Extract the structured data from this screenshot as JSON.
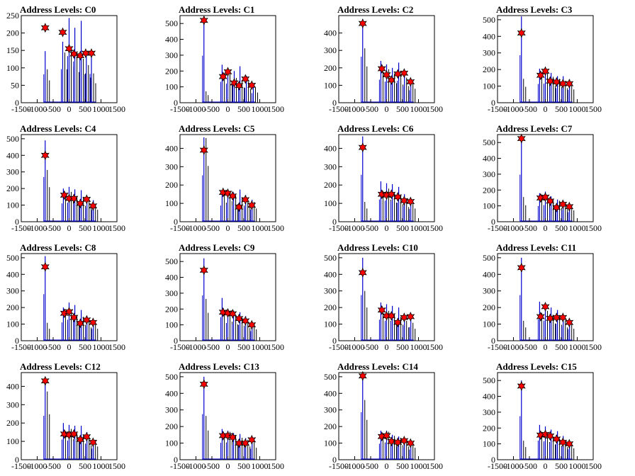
{
  "chart_data": [
    {
      "type": "line",
      "title": "Address Levels: C0",
      "xlim": [
        -1500,
        1500
      ],
      "ylim": [
        0,
        250
      ],
      "yticks": [
        0,
        50,
        100,
        150,
        200,
        250
      ],
      "xticks": [
        -1500,
        -1000,
        -500,
        0,
        500,
        1000,
        1500
      ],
      "histogram": {
        "x": [
          -750,
          -200,
          0,
          180,
          380,
          540,
          700
        ],
        "heights": [
          148,
          175,
          243,
          215,
          235,
          148,
          150
        ],
        "secondary": [
          80,
          120,
          130,
          110,
          105,
          90,
          70
        ]
      },
      "peaks": {
        "x": [
          -750,
          -200,
          0,
          150,
          350,
          520,
          700
        ],
        "y": [
          215,
          202,
          155,
          140,
          135,
          142,
          142
        ]
      },
      "colors": {
        "histogram": "#0000cc",
        "marker": "#ff0000",
        "secondary": "#000000"
      }
    },
    {
      "type": "line",
      "title": "Address Levels: C1",
      "xlim": [
        -1500,
        1500
      ],
      "ylim": [
        0,
        550
      ],
      "yticks": [
        0,
        100,
        200,
        300,
        400,
        500
      ],
      "xticks": [
        -1500,
        -1000,
        -500,
        0,
        500,
        1000,
        1500
      ],
      "histogram": {
        "x": [
          -750,
          -180,
          0,
          200,
          380,
          580,
          800
        ],
        "heights": [
          540,
          240,
          220,
          200,
          230,
          170,
          110
        ],
        "secondary": [
          60,
          140,
          150,
          130,
          120,
          110,
          80
        ]
      },
      "peaks": {
        "x": [
          -750,
          -150,
          0,
          200,
          350,
          550,
          750
        ],
        "y": [
          520,
          165,
          195,
          125,
          108,
          150,
          110
        ]
      },
      "colors": {
        "histogram": "#0000cc",
        "marker": "#ff0000",
        "secondary": "#000000"
      }
    },
    {
      "type": "line",
      "title": "Address Levels: C2",
      "xlim": [
        -1500,
        1500
      ],
      "ylim": [
        0,
        500
      ],
      "yticks": [
        0,
        100,
        200,
        300,
        400
      ],
      "xticks": [
        -1500,
        -1000,
        -500,
        0,
        500,
        1000,
        1500
      ],
      "histogram": {
        "x": [
          -750,
          -180,
          0,
          180,
          380,
          560,
          760
        ],
        "heights": [
          480,
          240,
          220,
          200,
          230,
          170,
          130
        ],
        "secondary": [
          260,
          150,
          160,
          140,
          130,
          120,
          100
        ]
      },
      "peaks": {
        "x": [
          -750,
          -150,
          0,
          150,
          350,
          550,
          750
        ],
        "y": [
          455,
          195,
          160,
          130,
          165,
          170,
          120
        ]
      },
      "colors": {
        "histogram": "#0000cc",
        "marker": "#ff0000",
        "secondary": "#000000"
      }
    },
    {
      "type": "line",
      "title": "Address Levels: C3",
      "xlim": [
        -1500,
        1500
      ],
      "ylim": [
        0,
        525
      ],
      "yticks": [
        0,
        100,
        200,
        300,
        400,
        500
      ],
      "xticks": [
        -1500,
        -1000,
        -500,
        0,
        500,
        1000,
        1500
      ],
      "histogram": {
        "x": [
          -750,
          -180,
          0,
          180,
          380,
          560,
          760
        ],
        "heights": [
          520,
          205,
          210,
          180,
          160,
          160,
          140
        ],
        "secondary": [
          120,
          140,
          150,
          130,
          120,
          110,
          100
        ]
      },
      "peaks": {
        "x": [
          -750,
          -150,
          0,
          150,
          350,
          550,
          750
        ],
        "y": [
          420,
          165,
          190,
          130,
          125,
          115,
          115
        ]
      },
      "colors": {
        "histogram": "#0000cc",
        "marker": "#ff0000",
        "secondary": "#000000"
      }
    },
    {
      "type": "line",
      "title": "Address Levels: C4",
      "xlim": [
        -1500,
        1500
      ],
      "ylim": [
        0,
        525
      ],
      "yticks": [
        0,
        100,
        200,
        300,
        400,
        500
      ],
      "xticks": [
        -1500,
        -1000,
        -500,
        0,
        500,
        1000,
        1500
      ],
      "histogram": {
        "x": [
          -750,
          -180,
          0,
          180,
          380,
          560,
          760
        ],
        "heights": [
          490,
          200,
          210,
          195,
          190,
          150,
          130
        ],
        "secondary": [
          260,
          140,
          150,
          130,
          120,
          110,
          90
        ]
      },
      "peaks": {
        "x": [
          -750,
          -150,
          0,
          150,
          350,
          550,
          750
        ],
        "y": [
          400,
          160,
          140,
          140,
          110,
          135,
          95
        ]
      },
      "colors": {
        "histogram": "#0000cc",
        "marker": "#ff0000",
        "secondary": "#000000"
      }
    },
    {
      "type": "line",
      "title": "Address Levels: C5",
      "xlim": [
        -1500,
        1500
      ],
      "ylim": [
        0,
        475
      ],
      "yticks": [
        0,
        100,
        200,
        300,
        400
      ],
      "xticks": [
        -1500,
        -1000,
        -500,
        0,
        500,
        1000,
        1500
      ],
      "histogram": {
        "x": [
          -750,
          -180,
          0,
          180,
          380,
          560,
          760
        ],
        "heights": [
          460,
          160,
          170,
          160,
          175,
          145,
          120
        ],
        "secondary": [
          380,
          130,
          140,
          120,
          110,
          100,
          90
        ]
      },
      "peaks": {
        "x": [
          -750,
          -150,
          0,
          150,
          350,
          550,
          750
        ],
        "y": [
          390,
          160,
          155,
          140,
          80,
          120,
          90
        ]
      },
      "colors": {
        "histogram": "#0000cc",
        "marker": "#ff0000",
        "secondary": "#000000"
      }
    },
    {
      "type": "line",
      "title": "Address Levels: C6",
      "xlim": [
        -1500,
        1500
      ],
      "ylim": [
        0,
        475
      ],
      "yticks": [
        0,
        100,
        200,
        300,
        400
      ],
      "xticks": [
        -1500,
        -1000,
        -500,
        0,
        500,
        1000,
        1500
      ],
      "histogram": {
        "x": [
          -750,
          -180,
          0,
          180,
          380,
          560,
          760
        ],
        "heights": [
          465,
          220,
          210,
          205,
          190,
          150,
          125
        ],
        "secondary": [
          90,
          140,
          150,
          130,
          120,
          100,
          90
        ]
      },
      "peaks": {
        "x": [
          -750,
          -150,
          0,
          150,
          350,
          550,
          750
        ],
        "y": [
          405,
          150,
          145,
          150,
          135,
          115,
          110
        ]
      },
      "colors": {
        "histogram": "#0000cc",
        "marker": "#ff0000",
        "secondary": "#000000"
      }
    },
    {
      "type": "line",
      "title": "Address Levels: C7",
      "xlim": [
        -1500,
        1500
      ],
      "ylim": [
        0,
        550
      ],
      "yticks": [
        0,
        100,
        200,
        300,
        400,
        500
      ],
      "xticks": [
        -1500,
        -1000,
        -500,
        0,
        500,
        1000,
        1500
      ],
      "histogram": {
        "x": [
          -750,
          -180,
          0,
          180,
          380,
          560,
          760
        ],
        "heights": [
          540,
          180,
          190,
          160,
          140,
          130,
          110
        ],
        "secondary": [
          130,
          130,
          140,
          120,
          110,
          100,
          90
        ]
      },
      "peaks": {
        "x": [
          -750,
          -150,
          0,
          150,
          350,
          550,
          750
        ],
        "y": [
          525,
          150,
          155,
          130,
          90,
          110,
          95
        ]
      },
      "colors": {
        "histogram": "#0000cc",
        "marker": "#ff0000",
        "secondary": "#000000"
      }
    },
    {
      "type": "line",
      "title": "Address Levels: C8",
      "xlim": [
        -1500,
        1500
      ],
      "ylim": [
        0,
        525
      ],
      "yticks": [
        0,
        100,
        200,
        300,
        400,
        500
      ],
      "xticks": [
        -1500,
        -1000,
        -500,
        0,
        500,
        1000,
        1500
      ],
      "histogram": {
        "x": [
          -750,
          -180,
          0,
          180,
          380,
          560,
          760
        ],
        "heights": [
          510,
          200,
          230,
          215,
          185,
          150,
          130
        ],
        "secondary": [
          90,
          140,
          150,
          130,
          120,
          100,
          90
        ]
      },
      "peaks": {
        "x": [
          -750,
          -150,
          0,
          150,
          350,
          550,
          750
        ],
        "y": [
          445,
          165,
          175,
          140,
          105,
          125,
          110
        ]
      },
      "colors": {
        "histogram": "#0000cc",
        "marker": "#ff0000",
        "secondary": "#000000"
      }
    },
    {
      "type": "line",
      "title": "Address Levels: C9",
      "xlim": [
        -1500,
        1500
      ],
      "ylim": [
        0,
        550
      ],
      "yticks": [
        0,
        100,
        200,
        300,
        400,
        500
      ],
      "xticks": [
        -1500,
        -1000,
        -500,
        0,
        500,
        1000,
        1500
      ],
      "histogram": {
        "x": [
          -750,
          -180,
          0,
          180,
          380,
          560,
          760
        ],
        "heights": [
          520,
          270,
          200,
          190,
          180,
          155,
          110
        ],
        "secondary": [
          220,
          140,
          150,
          130,
          120,
          100,
          90
        ]
      },
      "peaks": {
        "x": [
          -750,
          -150,
          0,
          150,
          350,
          550,
          750
        ],
        "y": [
          445,
          180,
          175,
          170,
          140,
          125,
          100
        ]
      },
      "colors": {
        "histogram": "#0000cc",
        "marker": "#ff0000",
        "secondary": "#000000"
      }
    },
    {
      "type": "line",
      "title": "Address Levels: C10",
      "xlim": [
        -1500,
        1500
      ],
      "ylim": [
        0,
        525
      ],
      "yticks": [
        0,
        100,
        200,
        300,
        400,
        500
      ],
      "xticks": [
        -1500,
        -1000,
        -500,
        0,
        500,
        1000,
        1500
      ],
      "histogram": {
        "x": [
          -750,
          -180,
          0,
          180,
          380,
          560,
          760
        ],
        "heights": [
          500,
          230,
          220,
          210,
          200,
          160,
          150
        ],
        "secondary": [
          250,
          140,
          150,
          130,
          120,
          100,
          90
        ]
      },
      "peaks": {
        "x": [
          -750,
          -150,
          0,
          150,
          350,
          550,
          750
        ],
        "y": [
          410,
          185,
          150,
          150,
          110,
          140,
          145
        ]
      },
      "colors": {
        "histogram": "#0000cc",
        "marker": "#ff0000",
        "secondary": "#000000"
      }
    },
    {
      "type": "line",
      "title": "Address Levels: C11",
      "xlim": [
        -1500,
        1500
      ],
      "ylim": [
        0,
        525
      ],
      "yticks": [
        0,
        100,
        200,
        300,
        400,
        500
      ],
      "xticks": [
        -1500,
        -1000,
        -500,
        0,
        500,
        1000,
        1500
      ],
      "histogram": {
        "x": [
          -750,
          -180,
          0,
          180,
          380,
          560,
          760
        ],
        "heights": [
          500,
          235,
          220,
          200,
          185,
          155,
          125
        ],
        "secondary": [
          100,
          140,
          150,
          130,
          120,
          100,
          90
        ]
      },
      "peaks": {
        "x": [
          -750,
          -150,
          0,
          150,
          350,
          550,
          750
        ],
        "y": [
          440,
          145,
          205,
          135,
          140,
          140,
          110
        ]
      },
      "colors": {
        "histogram": "#0000cc",
        "marker": "#ff0000",
        "secondary": "#000000"
      }
    },
    {
      "type": "line",
      "title": "Address Levels: C12",
      "xlim": [
        -1500,
        1500
      ],
      "ylim": [
        0,
        475
      ],
      "yticks": [
        0,
        100,
        200,
        300,
        400
      ],
      "xticks": [
        -1500,
        -1000,
        -500,
        0,
        500,
        1000,
        1500
      ],
      "histogram": {
        "x": [
          -750,
          -180,
          0,
          180,
          380,
          560,
          760
        ],
        "heights": [
          435,
          200,
          190,
          185,
          185,
          150,
          110
        ],
        "secondary": [
          310,
          130,
          140,
          120,
          110,
          100,
          90
        ]
      },
      "peaks": {
        "x": [
          -750,
          -150,
          0,
          150,
          350,
          550,
          750
        ],
        "y": [
          430,
          140,
          135,
          140,
          110,
          125,
          95
        ]
      },
      "colors": {
        "histogram": "#0000cc",
        "marker": "#ff0000",
        "secondary": "#000000"
      }
    },
    {
      "type": "line",
      "title": "Address Levels: C13",
      "xlim": [
        -1500,
        1500
      ],
      "ylim": [
        0,
        525
      ],
      "yticks": [
        0,
        100,
        200,
        300,
        400,
        500
      ],
      "xticks": [
        -1500,
        -1000,
        -500,
        0,
        500,
        1000,
        1500
      ],
      "histogram": {
        "x": [
          -750,
          -180,
          0,
          180,
          380,
          560,
          760
        ],
        "heights": [
          500,
          185,
          175,
          160,
          155,
          130,
          120
        ],
        "secondary": [
          220,
          130,
          140,
          120,
          110,
          100,
          90
        ]
      },
      "peaks": {
        "x": [
          -750,
          -150,
          0,
          150,
          350,
          550,
          750
        ],
        "y": [
          455,
          145,
          145,
          135,
          100,
          100,
          120
        ]
      },
      "colors": {
        "histogram": "#0000cc",
        "marker": "#ff0000",
        "secondary": "#000000"
      }
    },
    {
      "type": "line",
      "title": "Address Levels: C14",
      "xlim": [
        -1500,
        1500
      ],
      "ylim": [
        0,
        525
      ],
      "yticks": [
        0,
        100,
        200,
        300,
        400,
        500
      ],
      "xticks": [
        -1500,
        -1000,
        -500,
        0,
        500,
        1000,
        1500
      ],
      "histogram": {
        "x": [
          -750,
          -180,
          0,
          180,
          380,
          560,
          760
        ],
        "heights": [
          520,
          175,
          175,
          150,
          140,
          130,
          110
        ],
        "secondary": [
          300,
          130,
          140,
          120,
          110,
          100,
          90
        ]
      },
      "peaks": {
        "x": [
          -750,
          -150,
          0,
          150,
          350,
          550,
          750
        ],
        "y": [
          505,
          140,
          145,
          110,
          105,
          115,
          100
        ]
      },
      "colors": {
        "histogram": "#0000cc",
        "marker": "#ff0000",
        "secondary": "#000000"
      }
    },
    {
      "type": "line",
      "title": "Address Levels: C15",
      "xlim": [
        -1500,
        1500
      ],
      "ylim": [
        0,
        550
      ],
      "yticks": [
        0,
        100,
        200,
        300,
        400,
        500
      ],
      "xticks": [
        -1500,
        -1000,
        -500,
        0,
        500,
        1000,
        1500
      ],
      "histogram": {
        "x": [
          -750,
          -180,
          0,
          180,
          380,
          560,
          760
        ],
        "heights": [
          500,
          220,
          210,
          190,
          180,
          150,
          120
        ],
        "secondary": [
          100,
          130,
          140,
          120,
          110,
          100,
          90
        ]
      },
      "peaks": {
        "x": [
          -750,
          -150,
          0,
          150,
          350,
          550,
          750
        ],
        "y": [
          465,
          155,
          160,
          150,
          130,
          110,
          100
        ]
      },
      "colors": {
        "histogram": "#0000cc",
        "marker": "#ff0000",
        "secondary": "#000000"
      }
    }
  ]
}
